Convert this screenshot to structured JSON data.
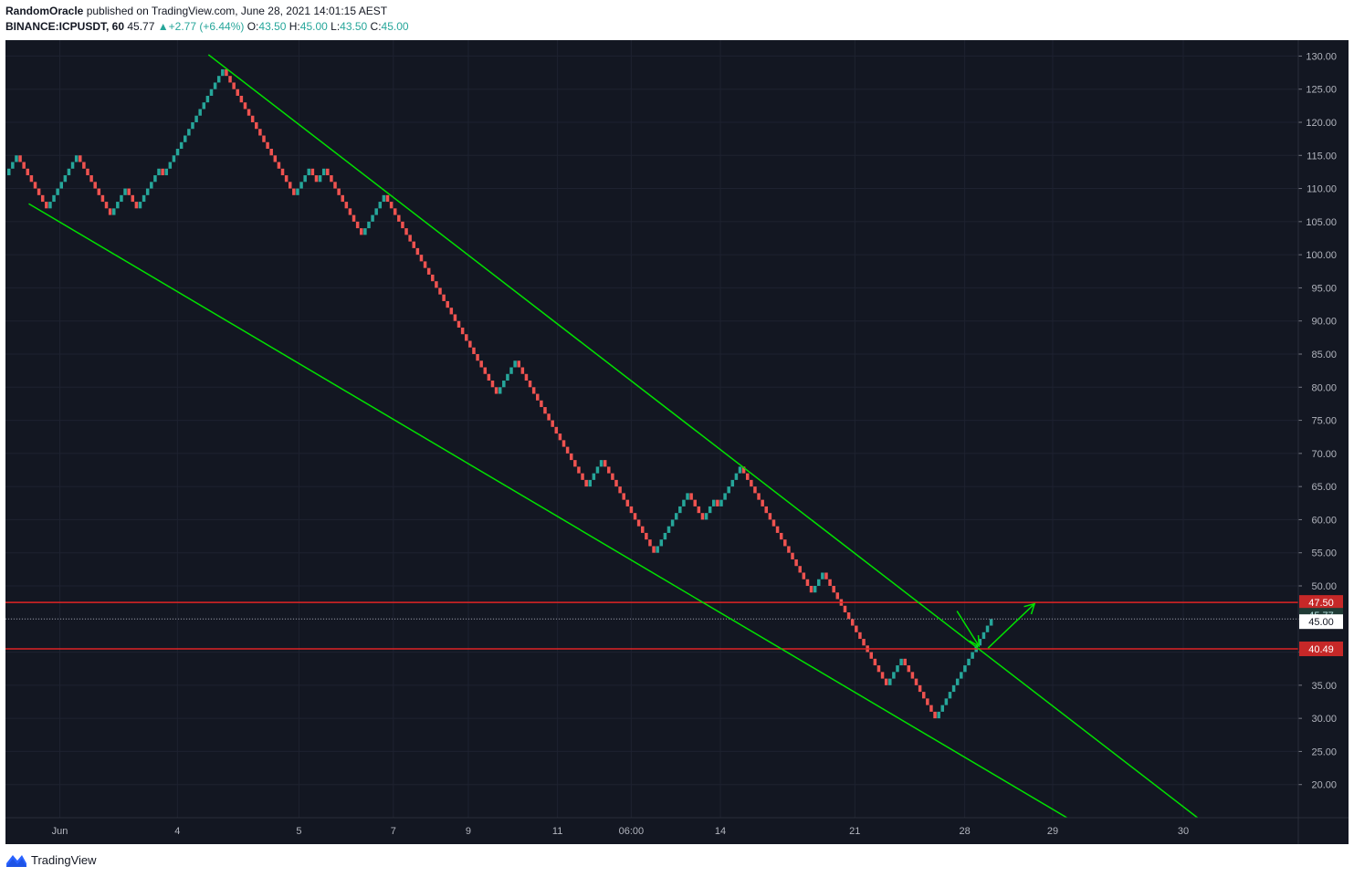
{
  "header": {
    "author": "RandomOracle",
    "published_text": "published on TradingView.com, June 28, 2021 14:01:15 AEST",
    "symbol": "BINANCE:ICPUSDT, 60",
    "last": "45.77",
    "change": "+2.77 (+6.44%)",
    "o_label": "O:",
    "o_value": "43.50",
    "h_label": "H:",
    "h_value": "45.00",
    "l_label": "L:",
    "l_value": "43.50",
    "c_label": "C:",
    "c_value": "45.00"
  },
  "footer": {
    "brand": "TradingView",
    "logo_icon": "tradingview-logo-icon"
  },
  "chart_data": {
    "type": "renko",
    "xlabel": "",
    "ylabel": "",
    "y_axis": {
      "ylim": [
        15,
        132
      ],
      "ticks": [
        130,
        125,
        120,
        115,
        110,
        105,
        100,
        95,
        90,
        85,
        80,
        75,
        70,
        65,
        60,
        55,
        50,
        45,
        40,
        35,
        30,
        25,
        20
      ],
      "position": "right"
    },
    "x_tick_labels": [
      "Jun",
      "4",
      "5",
      "7",
      "9",
      "11",
      "06:00",
      "14",
      "21",
      "28",
      "29",
      "30"
    ],
    "grid": true,
    "colors": {
      "background": "#131722",
      "up": "#26a69a",
      "down": "#ef5350",
      "trendline": "#00e100",
      "level": "#e02424",
      "grid": "#1e2230"
    },
    "brick_size": 1.0,
    "brick_path": [
      [
        112,
        "start"
      ],
      [
        115,
        "up"
      ],
      [
        107,
        "down"
      ],
      [
        115,
        "up"
      ],
      [
        106,
        "down"
      ],
      [
        110,
        "up"
      ],
      [
        107,
        "down"
      ],
      [
        113,
        "up"
      ],
      [
        112,
        "down"
      ],
      [
        128,
        "up"
      ],
      [
        109,
        "down"
      ],
      [
        113,
        "up"
      ],
      [
        111,
        "down"
      ],
      [
        113,
        "up"
      ],
      [
        103,
        "down"
      ],
      [
        109,
        "up"
      ],
      [
        79,
        "down"
      ],
      [
        84,
        "up"
      ],
      [
        65,
        "down"
      ],
      [
        69,
        "up"
      ],
      [
        55,
        "down"
      ],
      [
        64,
        "up"
      ],
      [
        60,
        "down"
      ],
      [
        63,
        "up"
      ],
      [
        62,
        "down"
      ],
      [
        68,
        "up"
      ],
      [
        49,
        "down"
      ],
      [
        52,
        "up"
      ],
      [
        35,
        "down"
      ],
      [
        39,
        "up"
      ],
      [
        30,
        "down"
      ],
      [
        45,
        "up"
      ]
    ],
    "trendlines": [
      {
        "name": "upper channel",
        "x1": 0.157,
        "y1": 130.2,
        "x2": 0.922,
        "y2": 15.0
      },
      {
        "name": "lower channel",
        "x1": 0.018,
        "y1": 107.7,
        "x2": 0.821,
        "y2": 15.0
      }
    ],
    "horizontal_levels": [
      {
        "value": 47.5,
        "label": "47.50"
      },
      {
        "value": 40.49,
        "label": "40.49"
      }
    ],
    "price_labels": [
      {
        "value": 45.77,
        "label": "45.77",
        "color": "#26a69a"
      },
      {
        "value": 45.0,
        "label": "45.00",
        "color": "#ffffff"
      }
    ],
    "annotation_arrows": [
      {
        "from": [
          0.736,
          46.2
        ],
        "to": [
          0.753,
          40.9
        ]
      },
      {
        "from": [
          0.76,
          40.6
        ],
        "to": [
          0.796,
          47.3
        ]
      }
    ]
  }
}
